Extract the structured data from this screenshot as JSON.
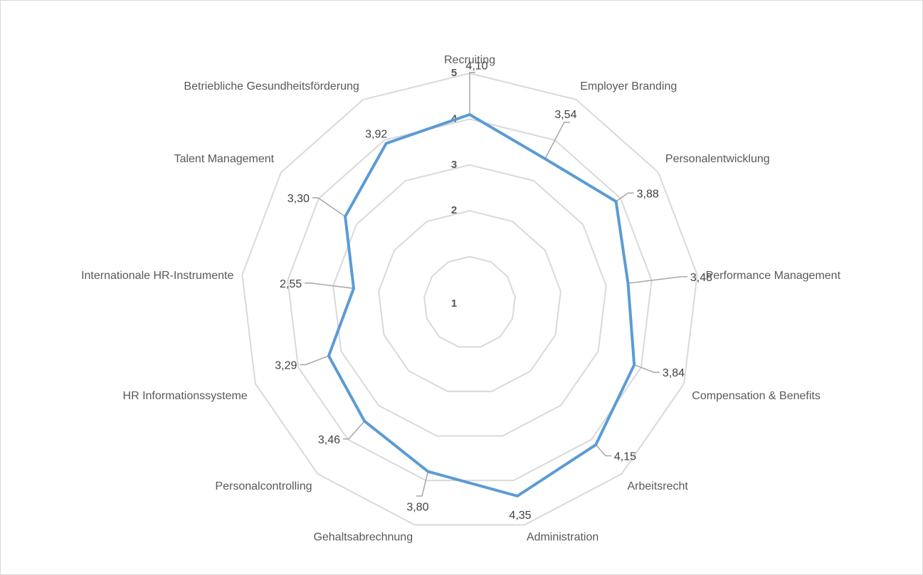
{
  "chart_data": {
    "type": "radar",
    "title": "",
    "scale": {
      "min": 0,
      "max": 5,
      "ticks": [
        1,
        2,
        3,
        4,
        5
      ]
    },
    "grid": true,
    "series": [
      {
        "color": "#5b9bd5",
        "values": [
          4.1,
          3.54,
          3.88,
          3.48,
          3.84,
          4.15,
          4.35,
          3.8,
          3.46,
          3.29,
          2.55,
          3.3,
          3.92
        ]
      }
    ],
    "categories": [
      "Recruiting",
      "Employer Branding",
      "Personalentwicklung",
      "Performance Management",
      "Compensation & Benefits",
      "Arbeitsrecht",
      "Administration",
      "Gehaltsabrechnung",
      "Personalcontrolling",
      "HR Informationssysteme",
      "Internationale HR-Instrumente",
      "Talent Management",
      "Betriebliche Gesundheitsförderung"
    ],
    "value_labels": [
      "4,10",
      "3,54",
      "3,88",
      "3,48",
      "3,84",
      "4,15",
      "4,35",
      "3,80",
      "3,46",
      "3,29",
      "2,55",
      "3,30",
      "3,92"
    ],
    "tick_labels": [
      "1",
      "2",
      "3",
      "4",
      "5"
    ],
    "colors": {
      "grid": "#d9d9d9",
      "leader": "#a6a6a6"
    }
  }
}
